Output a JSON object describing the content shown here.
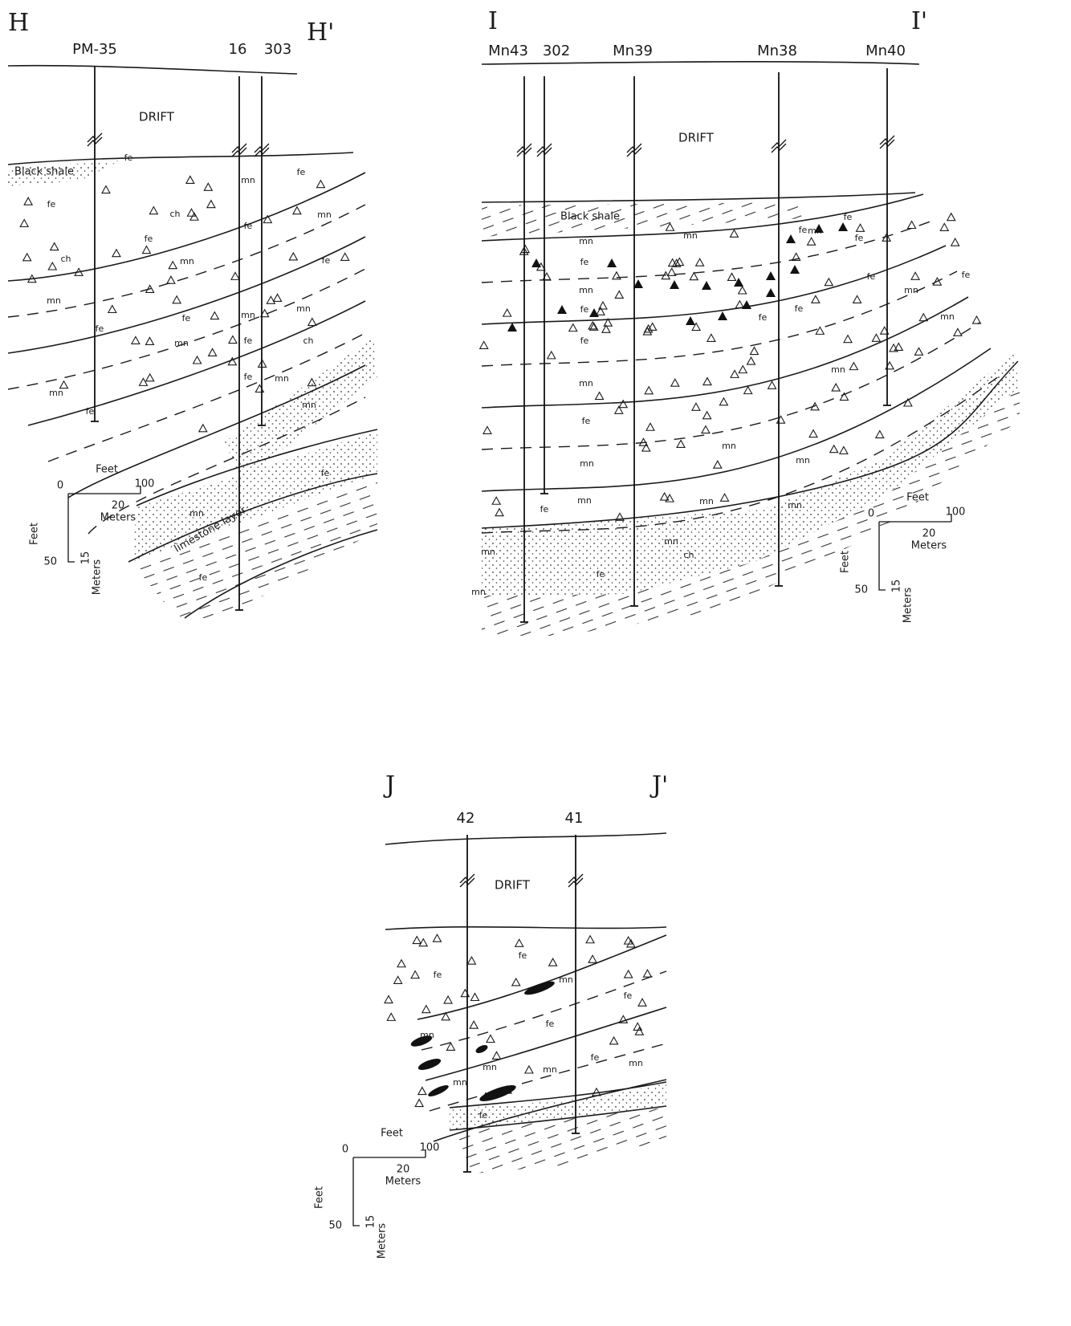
{
  "sections": [
    {
      "title_left": "H",
      "title_right": "H'",
      "boreholes": [
        "PM-35",
        "16",
        "303"
      ],
      "drift": "DRIFT",
      "units": [
        "Black shale",
        "limestone layer"
      ],
      "lithology": [
        "fe",
        "fe",
        "ch",
        "fe",
        "ch",
        "mn",
        "mn",
        "fe",
        "fe",
        "mn",
        "mn",
        "fe",
        "fe",
        "mn",
        "mn",
        "fe",
        "fe",
        "mn",
        "fe",
        "fe",
        "mn",
        "ch",
        "mn",
        "mn",
        "mn",
        "fe",
        "fe"
      ],
      "scale": {
        "feet_top": "Feet",
        "zero": "0",
        "hundred": "100",
        "twenty": "20",
        "meters_top": "Meters",
        "feet_side": "Feet",
        "fifty": "50",
        "fifteen": "15",
        "meters_side": "Meters"
      }
    },
    {
      "title_left": "I",
      "title_right": "I'",
      "boreholes": [
        "Mn43",
        "302",
        "Mn39",
        "Mn38",
        "Mn40"
      ],
      "drift": "DRIFT",
      "units": [
        "Black shale"
      ],
      "lithology": [
        "mn",
        "fe",
        "mn",
        "fe",
        "fe",
        "mn",
        "fe",
        "mn",
        "mn",
        "fe",
        "mn",
        "mn",
        "mn",
        "fe",
        "mn",
        "fe",
        "fe",
        "fe",
        "fe",
        "fe",
        "mn",
        "mn",
        "fe",
        "mn",
        "mn",
        "mn",
        "mn",
        "mn",
        "mn",
        "ch",
        "fe"
      ],
      "scale": {
        "feet_top": "Feet",
        "zero": "0",
        "hundred": "100",
        "twenty": "20",
        "meters_top": "Meters",
        "feet_side": "Feet",
        "fifty": "50",
        "fifteen": "15",
        "meters_side": "Meters"
      }
    },
    {
      "title_left": "J",
      "title_right": "J'",
      "boreholes": [
        "42",
        "41"
      ],
      "drift": "DRIFT",
      "lithology": [
        "fe",
        "fe",
        "mn",
        "fe",
        "fe",
        "mn",
        "mn",
        "mn",
        "fe",
        "mn",
        "mn",
        "fe"
      ],
      "scale": {
        "feet_top": "Feet",
        "zero": "0",
        "hundred": "100",
        "twenty": "20",
        "meters_top": "Meters",
        "feet_side": "Feet",
        "fifty": "50",
        "fifteen": "15",
        "meters_side": "Meters"
      }
    }
  ]
}
